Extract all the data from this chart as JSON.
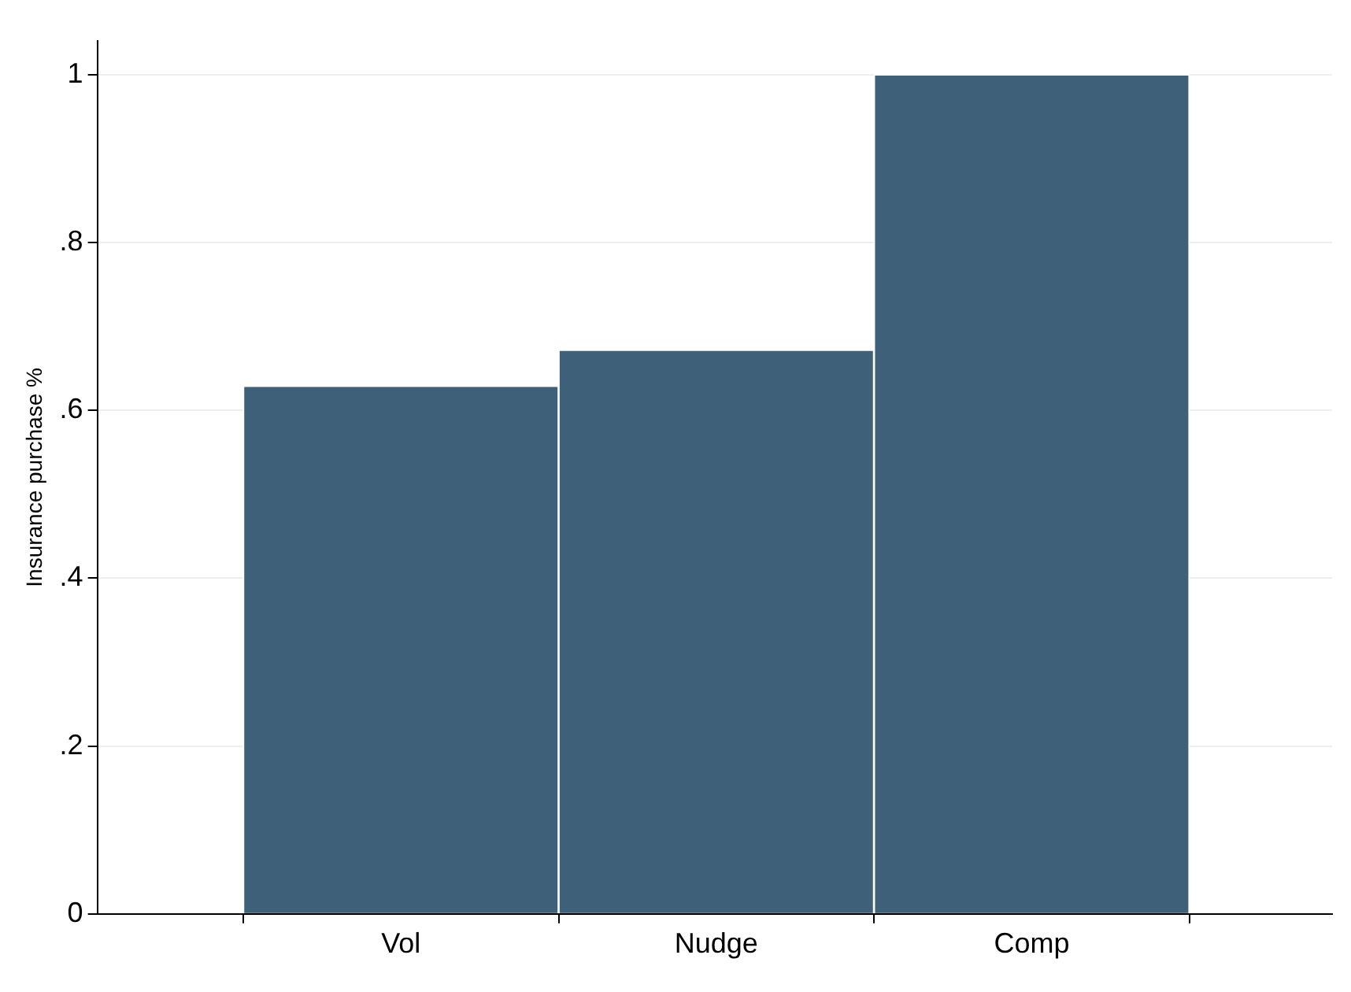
{
  "chart_data": {
    "type": "bar",
    "ylabel": "Insurance purchase %",
    "categories": [
      "Vol",
      "Nudge",
      "Comp"
    ],
    "values": [
      0.629,
      0.672,
      1.0
    ],
    "color": "#3e6079",
    "ylim": [
      0,
      1.04
    ],
    "yticks": [
      {
        "value": 0,
        "label": "0"
      },
      {
        "value": 0.2,
        "label": ".2"
      },
      {
        "value": 0.4,
        "label": ".4"
      },
      {
        "value": 0.6,
        "label": ".6"
      },
      {
        "value": 0.8,
        "label": ".8"
      },
      {
        "value": 1,
        "label": "1"
      }
    ],
    "grid": "y",
    "legend": false
  }
}
